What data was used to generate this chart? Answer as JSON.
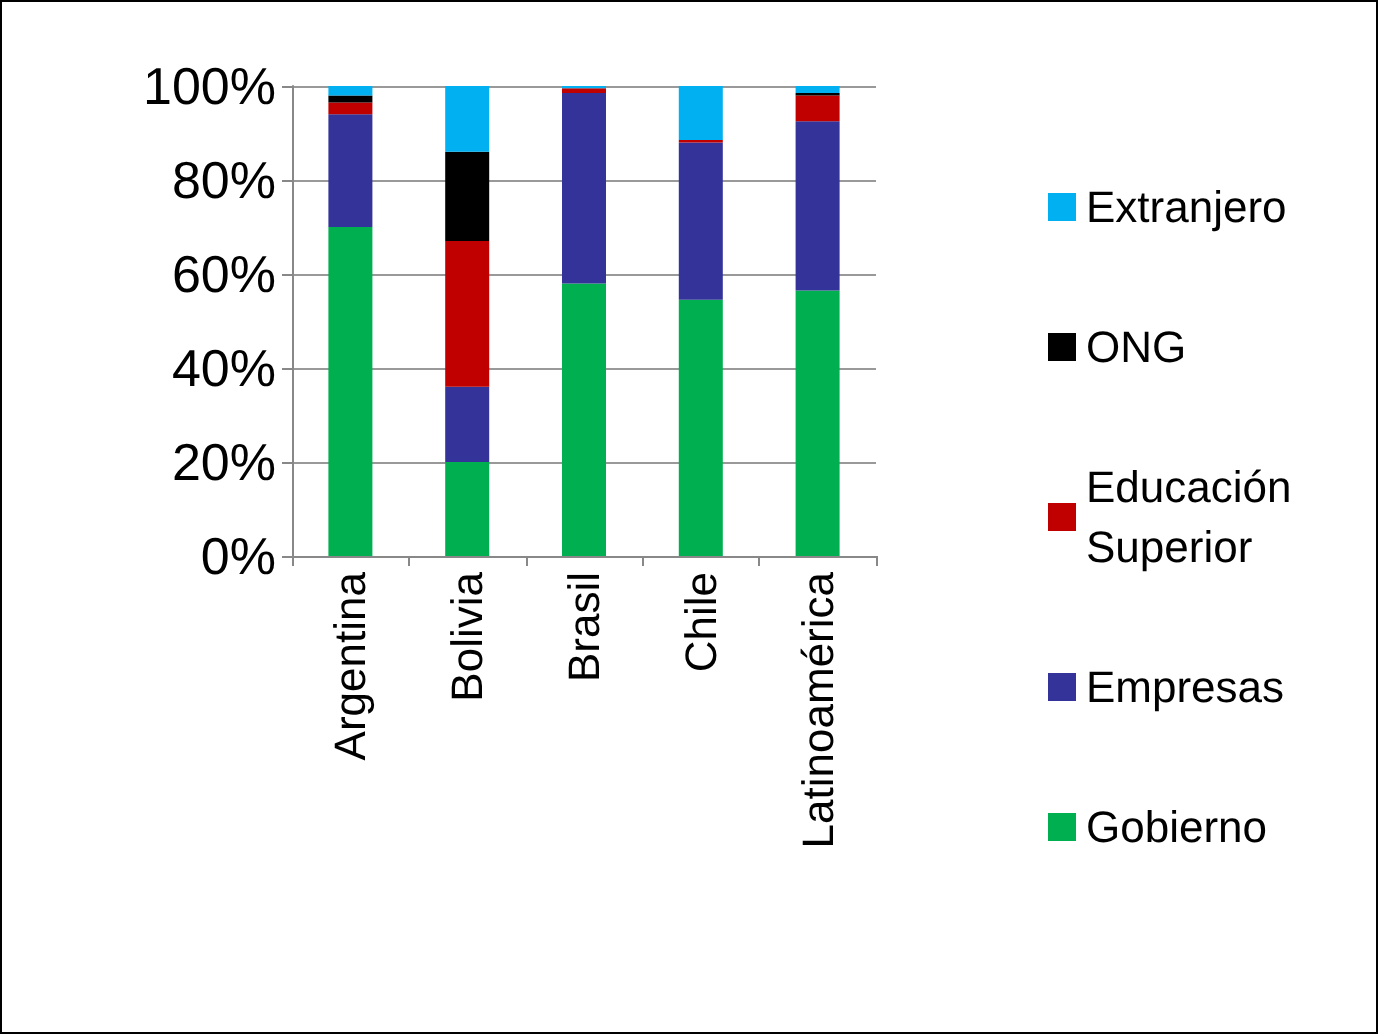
{
  "chart_data": {
    "type": "bar",
    "stacked": true,
    "categories": [
      "Argentina",
      "Bolivia",
      "Brasil",
      "Chile",
      "Latinoamérica"
    ],
    "series": [
      {
        "name": "Gobierno",
        "color": "#00b050",
        "values": [
          70,
          20,
          58,
          54.5,
          56.5
        ]
      },
      {
        "name": "Empresas",
        "color": "#333399",
        "values": [
          24,
          16,
          40.5,
          33.5,
          36
        ]
      },
      {
        "name": "Educación Superior",
        "color": "#c00000",
        "values": [
          2.5,
          31,
          1,
          0.5,
          5.5
        ]
      },
      {
        "name": "ONG",
        "color": "#000000",
        "values": [
          1.5,
          19,
          0,
          0,
          0.5
        ]
      },
      {
        "name": "Extranjero",
        "color": "#00b0f0",
        "values": [
          2,
          14,
          0.5,
          11.5,
          1.5
        ]
      }
    ],
    "ylim": [
      0,
      100
    ],
    "yticks": [
      {
        "value": 0,
        "label": "0%"
      },
      {
        "value": 20,
        "label": "20%"
      },
      {
        "value": 40,
        "label": "40%"
      },
      {
        "value": 60,
        "label": "60%"
      },
      {
        "value": 80,
        "label": "80%"
      },
      {
        "value": 100,
        "label": "100%"
      }
    ],
    "grid": "y",
    "legend": "right"
  }
}
